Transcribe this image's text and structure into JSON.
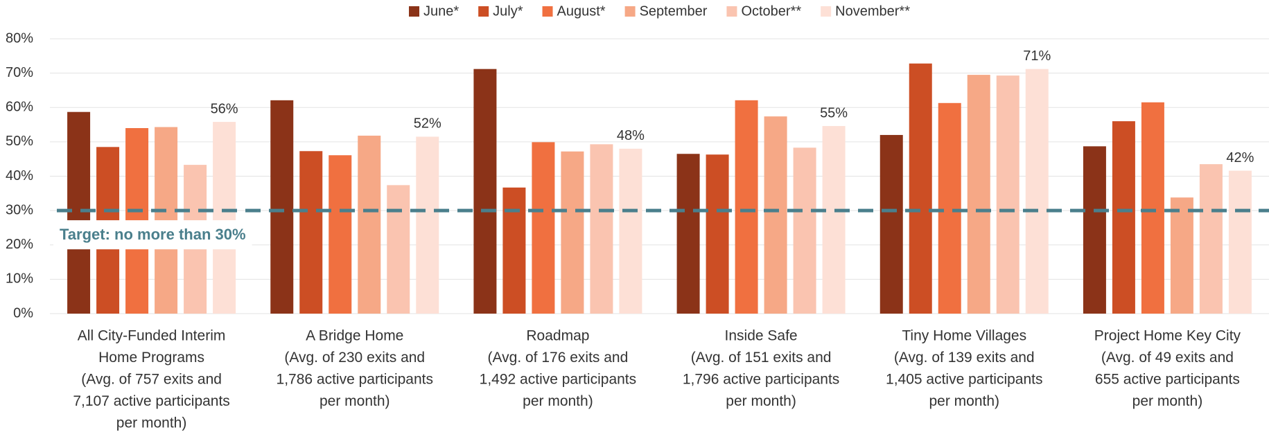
{
  "chart_data": {
    "type": "bar",
    "categories": [
      [
        "All City-Funded Interim",
        "Home Programs",
        "(Avg. of 757 exits and",
        "7,107 active participants",
        "per month)"
      ],
      [
        "A Bridge Home",
        "(Avg. of 230 exits and",
        "1,786 active participants",
        "per month)"
      ],
      [
        "Roadmap",
        "(Avg. of 176 exits and",
        "1,492 active participants",
        "per month)"
      ],
      [
        "Inside Safe",
        "(Avg. of 151 exits and",
        "1,796 active participants",
        "per month)"
      ],
      [
        "Tiny Home Villages",
        "(Avg. of 139 exits and",
        "1,405 active participants",
        "per month)"
      ],
      [
        "Project Home Key City",
        "(Avg. of 49 exits and",
        "655 active participants",
        "per month)"
      ]
    ],
    "series": [
      {
        "name": "June*",
        "color": "#8b3318",
        "values": [
          58.7,
          62.1,
          71.2,
          46.5,
          52.0,
          48.7
        ]
      },
      {
        "name": "July*",
        "color": "#cc4e24",
        "values": [
          48.5,
          47.3,
          36.7,
          46.3,
          72.8,
          56.0
        ]
      },
      {
        "name": "August*",
        "color": "#f07040",
        "values": [
          54.0,
          46.1,
          49.9,
          62.1,
          61.3,
          61.5
        ]
      },
      {
        "name": "September",
        "color": "#f6a886",
        "values": [
          54.3,
          51.8,
          47.2,
          57.4,
          69.5,
          33.8
        ]
      },
      {
        "name": "October**",
        "color": "#fac4b0",
        "values": [
          43.3,
          37.4,
          49.3,
          48.3,
          69.3,
          43.5
        ]
      },
      {
        "name": "November**",
        "color": "#fde0d6",
        "values": [
          55.8,
          51.5,
          48.0,
          54.6,
          71.2,
          41.6
        ],
        "value_labels": [
          "56%",
          "52%",
          "48%",
          "55%",
          "71%",
          "42%"
        ]
      }
    ],
    "ylim": [
      0,
      80
    ],
    "yticks": [
      {
        "value": 0,
        "label": "0%"
      },
      {
        "value": 10,
        "label": "10%"
      },
      {
        "value": 20,
        "label": "20%"
      },
      {
        "value": 30,
        "label": "30%"
      },
      {
        "value": 40,
        "label": "40%"
      },
      {
        "value": 50,
        "label": "50%"
      },
      {
        "value": 60,
        "label": "60%"
      },
      {
        "value": 70,
        "label": "70%"
      },
      {
        "value": 80,
        "label": "80%"
      }
    ],
    "grid": true,
    "legend": "top",
    "target": {
      "value": 30,
      "label": "Target: no more than 30%",
      "color": "#4a7f8c"
    }
  }
}
